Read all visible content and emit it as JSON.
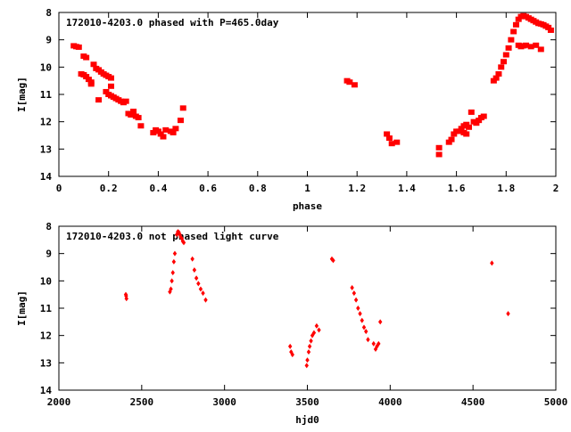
{
  "chart_data": [
    {
      "type": "scatter",
      "title": "172010-4203.0 phased with P=465.0day",
      "xlabel": "phase",
      "ylabel": "I[mag]",
      "xlim": [
        0,
        2
      ],
      "ylim": [
        8,
        14
      ],
      "y_inverted": true,
      "grid": false,
      "marker": "square",
      "color": "#ff0000",
      "xticks": [
        "0",
        "0.2",
        "0.4",
        "0.6",
        "0.8",
        "1",
        "1.2",
        "1.4",
        "1.6",
        "1.8",
        "2"
      ],
      "yticks": [
        "8",
        "9",
        "10",
        "11",
        "12",
        "13",
        "14"
      ],
      "points": [
        [
          0.06,
          9.22
        ],
        [
          0.07,
          9.25
        ],
        [
          0.08,
          9.27
        ],
        [
          0.1,
          9.6
        ],
        [
          0.11,
          9.65
        ],
        [
          0.09,
          10.25
        ],
        [
          0.1,
          10.28
        ],
        [
          0.11,
          10.35
        ],
        [
          0.12,
          10.45
        ],
        [
          0.13,
          10.55
        ],
        [
          0.13,
          10.62
        ],
        [
          0.14,
          9.9
        ],
        [
          0.15,
          10.05
        ],
        [
          0.16,
          10.1
        ],
        [
          0.17,
          10.18
        ],
        [
          0.18,
          10.25
        ],
        [
          0.19,
          10.3
        ],
        [
          0.2,
          10.35
        ],
        [
          0.21,
          10.4
        ],
        [
          0.16,
          11.2
        ],
        [
          0.19,
          10.9
        ],
        [
          0.2,
          11.0
        ],
        [
          0.21,
          11.05
        ],
        [
          0.22,
          11.1
        ],
        [
          0.23,
          11.15
        ],
        [
          0.24,
          11.2
        ],
        [
          0.25,
          11.25
        ],
        [
          0.26,
          11.3
        ],
        [
          0.27,
          11.25
        ],
        [
          0.21,
          10.7
        ],
        [
          0.28,
          11.7
        ],
        [
          0.29,
          11.75
        ],
        [
          0.3,
          11.62
        ],
        [
          0.31,
          11.8
        ],
        [
          0.32,
          11.85
        ],
        [
          0.33,
          12.15
        ],
        [
          0.38,
          12.4
        ],
        [
          0.39,
          12.3
        ],
        [
          0.4,
          12.35
        ],
        [
          0.41,
          12.45
        ],
        [
          0.42,
          12.55
        ],
        [
          0.43,
          12.3
        ],
        [
          0.45,
          12.35
        ],
        [
          0.46,
          12.4
        ],
        [
          0.47,
          12.25
        ],
        [
          0.49,
          11.95
        ],
        [
          0.5,
          11.5
        ],
        [
          1.16,
          10.5
        ],
        [
          1.17,
          10.55
        ],
        [
          1.19,
          10.65
        ],
        [
          1.32,
          12.45
        ],
        [
          1.33,
          12.6
        ],
        [
          1.34,
          12.8
        ],
        [
          1.36,
          12.75
        ],
        [
          1.53,
          12.95
        ],
        [
          1.53,
          13.2
        ],
        [
          1.57,
          12.75
        ],
        [
          1.58,
          12.65
        ],
        [
          1.59,
          12.45
        ],
        [
          1.6,
          12.35
        ],
        [
          1.61,
          12.35
        ],
        [
          1.62,
          12.25
        ],
        [
          1.63,
          12.15
        ],
        [
          1.64,
          12.1
        ],
        [
          1.65,
          12.2
        ],
        [
          1.63,
          12.4
        ],
        [
          1.64,
          12.45
        ],
        [
          1.66,
          11.65
        ],
        [
          1.67,
          12.0
        ],
        [
          1.68,
          12.05
        ],
        [
          1.69,
          11.95
        ],
        [
          1.7,
          11.85
        ],
        [
          1.71,
          11.8
        ],
        [
          1.75,
          10.5
        ],
        [
          1.76,
          10.4
        ],
        [
          1.77,
          10.25
        ],
        [
          1.78,
          10.0
        ],
        [
          1.79,
          9.8
        ],
        [
          1.8,
          9.55
        ],
        [
          1.81,
          9.3
        ],
        [
          1.82,
          9.0
        ],
        [
          1.83,
          8.7
        ],
        [
          1.84,
          8.45
        ],
        [
          1.85,
          8.25
        ],
        [
          1.86,
          8.15
        ],
        [
          1.87,
          8.12
        ],
        [
          1.88,
          8.15
        ],
        [
          1.89,
          8.2
        ],
        [
          1.9,
          8.25
        ],
        [
          1.91,
          8.3
        ],
        [
          1.92,
          8.35
        ],
        [
          1.93,
          8.4
        ],
        [
          1.94,
          8.42
        ],
        [
          1.95,
          8.45
        ],
        [
          1.96,
          8.5
        ],
        [
          1.97,
          8.55
        ],
        [
          1.98,
          8.65
        ],
        [
          1.85,
          9.2
        ],
        [
          1.86,
          9.25
        ],
        [
          1.87,
          9.22
        ],
        [
          1.88,
          9.2
        ],
        [
          1.9,
          9.25
        ],
        [
          1.92,
          9.2
        ],
        [
          1.94,
          9.35
        ]
      ]
    },
    {
      "type": "scatter",
      "title": "172010-4203.0 not phased light curve",
      "xlabel": "hjd0",
      "ylabel": "I[mag]",
      "xlim": [
        2000,
        5000
      ],
      "ylim": [
        8,
        14
      ],
      "y_inverted": true,
      "grid": false,
      "marker": "diamond",
      "color": "#ff0000",
      "xticks": [
        "2000",
        "2500",
        "3000",
        "3500",
        "4000",
        "4500",
        "5000"
      ],
      "yticks": [
        "8",
        "9",
        "10",
        "11",
        "12",
        "13",
        "14"
      ],
      "points": [
        [
          2404,
          10.5
        ],
        [
          2406,
          10.55
        ],
        [
          2408,
          10.65
        ],
        [
          2670,
          10.4
        ],
        [
          2676,
          10.3
        ],
        [
          2682,
          10.0
        ],
        [
          2688,
          9.7
        ],
        [
          2694,
          9.3
        ],
        [
          2700,
          9.0
        ],
        [
          2712,
          8.3
        ],
        [
          2718,
          8.2
        ],
        [
          2724,
          8.22
        ],
        [
          2730,
          8.3
        ],
        [
          2736,
          8.4
        ],
        [
          2742,
          8.45
        ],
        [
          2748,
          8.55
        ],
        [
          2754,
          8.6
        ],
        [
          2806,
          9.2
        ],
        [
          2818,
          9.6
        ],
        [
          2830,
          9.9
        ],
        [
          2842,
          10.1
        ],
        [
          2856,
          10.3
        ],
        [
          2870,
          10.45
        ],
        [
          2886,
          10.7
        ],
        [
          3396,
          12.4
        ],
        [
          3402,
          12.6
        ],
        [
          3410,
          12.7
        ],
        [
          3496,
          13.1
        ],
        [
          3500,
          12.9
        ],
        [
          3508,
          12.6
        ],
        [
          3514,
          12.4
        ],
        [
          3522,
          12.2
        ],
        [
          3530,
          12.0
        ],
        [
          3540,
          11.9
        ],
        [
          3556,
          11.65
        ],
        [
          3570,
          11.8
        ],
        [
          3648,
          9.2
        ],
        [
          3656,
          9.25
        ],
        [
          3770,
          10.25
        ],
        [
          3782,
          10.45
        ],
        [
          3794,
          10.7
        ],
        [
          3806,
          11.0
        ],
        [
          3818,
          11.2
        ],
        [
          3830,
          11.45
        ],
        [
          3842,
          11.7
        ],
        [
          3854,
          11.85
        ],
        [
          3866,
          12.15
        ],
        [
          3900,
          12.3
        ],
        [
          3912,
          12.5
        ],
        [
          3920,
          12.4
        ],
        [
          3930,
          12.3
        ],
        [
          3940,
          11.5
        ],
        [
          4614,
          9.35
        ],
        [
          4712,
          11.2
        ]
      ]
    }
  ]
}
